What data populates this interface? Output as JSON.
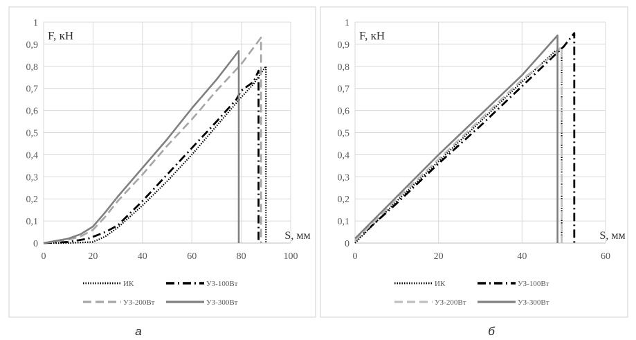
{
  "chart_data": [
    {
      "type": "line",
      "caption": "а",
      "ylabel": "F, кН",
      "xlabel": "S, мм",
      "xlim": [
        0,
        100
      ],
      "ylim": [
        0,
        1
      ],
      "xticks": [
        "0",
        "20",
        "40",
        "60",
        "80",
        "100"
      ],
      "yticks": [
        "0",
        "0,1",
        "0,2",
        "0,3",
        "0,4",
        "0,5",
        "0,6",
        "0,7",
        "0,8",
        "0,9",
        "1"
      ],
      "grid": true,
      "legend_position": "bottom",
      "series": [
        {
          "name": "ИК",
          "style": "dotted",
          "color": "#000000",
          "points": [
            [
              0,
              0
            ],
            [
              10,
              0
            ],
            [
              20,
              0.005
            ],
            [
              25,
              0.03
            ],
            [
              30,
              0.07
            ],
            [
              40,
              0.17
            ],
            [
              50,
              0.28
            ],
            [
              60,
              0.4
            ],
            [
              70,
              0.53
            ],
            [
              80,
              0.66
            ],
            [
              85,
              0.72
            ],
            [
              88,
              0.77
            ],
            [
              90,
              0.8
            ],
            [
              90,
              0
            ]
          ]
        },
        {
          "name": "УЗ-100Вт",
          "style": "dash-dot",
          "color": "#000000",
          "points": [
            [
              0,
              0
            ],
            [
              10,
              0.005
            ],
            [
              18,
              0.02
            ],
            [
              25,
              0.05
            ],
            [
              30,
              0.08
            ],
            [
              40,
              0.19
            ],
            [
              50,
              0.31
            ],
            [
              60,
              0.43
            ],
            [
              70,
              0.55
            ],
            [
              78,
              0.65
            ],
            [
              80,
              0.69
            ],
            [
              85,
              0.73
            ],
            [
              87,
              0.78
            ],
            [
              87,
              0
            ]
          ]
        },
        {
          "name": "УЗ-200Вт",
          "style": "dashed",
          "color": "#a6a6a6",
          "points": [
            [
              0,
              0
            ],
            [
              10,
              0.015
            ],
            [
              15,
              0.03
            ],
            [
              20,
              0.06
            ],
            [
              25,
              0.12
            ],
            [
              30,
              0.19
            ],
            [
              40,
              0.31
            ],
            [
              50,
              0.44
            ],
            [
              60,
              0.56
            ],
            [
              70,
              0.69
            ],
            [
              80,
              0.81
            ],
            [
              88,
              0.93
            ],
            [
              88,
              0
            ]
          ]
        },
        {
          "name": "УЗ-300Вт",
          "style": "solid",
          "color": "#808080",
          "points": [
            [
              0,
              0
            ],
            [
              10,
              0.02
            ],
            [
              15,
              0.04
            ],
            [
              20,
              0.075
            ],
            [
              25,
              0.14
            ],
            [
              30,
              0.21
            ],
            [
              40,
              0.34
            ],
            [
              50,
              0.47
            ],
            [
              60,
              0.61
            ],
            [
              70,
              0.74
            ],
            [
              79,
              0.87
            ],
            [
              79,
              0
            ]
          ]
        }
      ]
    },
    {
      "type": "line",
      "caption": "б",
      "ylabel": "F, кН",
      "xlabel": "S, мм",
      "xlim": [
        0,
        60
      ],
      "ylim": [
        0,
        1
      ],
      "xticks": [
        "0",
        "20",
        "40",
        "60"
      ],
      "yticks": [
        "0",
        "0,1",
        "0,2",
        "0,3",
        "0,4",
        "0,5",
        "0,6",
        "0,7",
        "0,8",
        "0,9",
        "1"
      ],
      "grid": true,
      "legend_position": "bottom",
      "series": [
        {
          "name": "ИК",
          "style": "dotted",
          "color": "#000000",
          "points": [
            [
              0,
              0
            ],
            [
              10,
              0.19
            ],
            [
              20,
              0.37
            ],
            [
              30,
              0.55
            ],
            [
              40,
              0.73
            ],
            [
              48,
              0.87
            ],
            [
              49.5,
              0.88
            ],
            [
              49.5,
              0
            ]
          ]
        },
        {
          "name": "УЗ-100Вт",
          "style": "dash-dot",
          "color": "#000000",
          "points": [
            [
              0,
              0.01
            ],
            [
              10,
              0.18
            ],
            [
              20,
              0.36
            ],
            [
              30,
              0.53
            ],
            [
              40,
              0.71
            ],
            [
              50,
              0.89
            ],
            [
              52.5,
              0.95
            ],
            [
              52.5,
              0
            ]
          ]
        },
        {
          "name": "УЗ-200Вт",
          "style": "dashed",
          "color": "#bfbfbf",
          "points": [
            [
              0,
              0.01
            ],
            [
              10,
              0.2
            ],
            [
              20,
              0.38
            ],
            [
              30,
              0.56
            ],
            [
              40,
              0.74
            ],
            [
              48,
              0.86
            ],
            [
              49.5,
              0.89
            ],
            [
              49.5,
              0
            ]
          ]
        },
        {
          "name": "УЗ-300Вт",
          "style": "solid",
          "color": "#808080",
          "points": [
            [
              0,
              0.02
            ],
            [
              10,
              0.21
            ],
            [
              20,
              0.4
            ],
            [
              30,
              0.58
            ],
            [
              40,
              0.76
            ],
            [
              48.5,
              0.94
            ],
            [
              48.5,
              0
            ]
          ]
        }
      ]
    }
  ]
}
